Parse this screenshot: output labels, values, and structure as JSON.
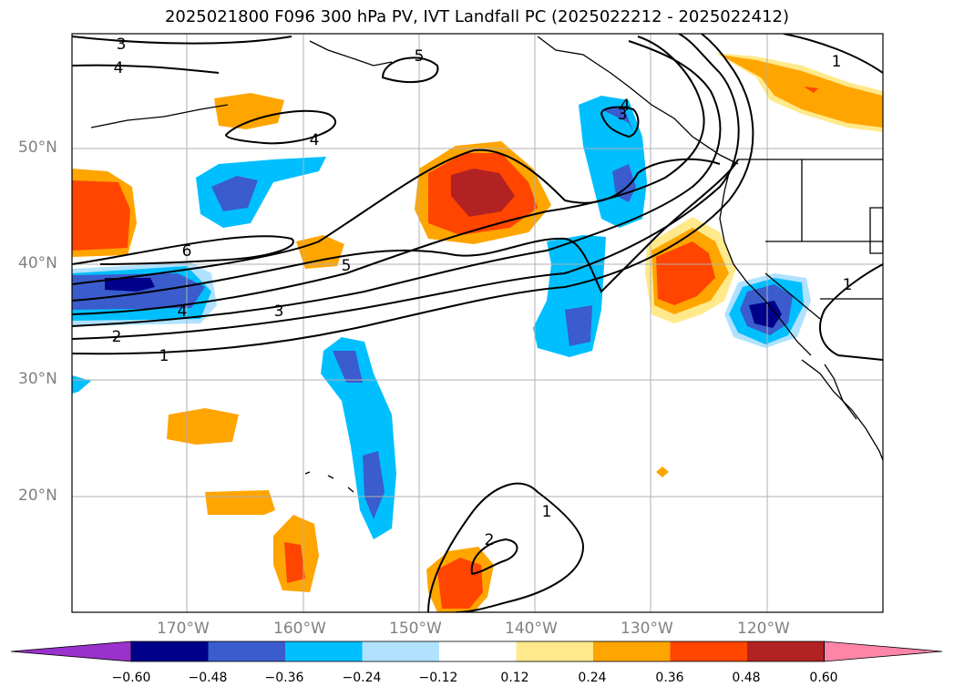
{
  "title": "2025021800 F096 300 hPa PV, IVT Landfall PC (2025022212 - 2025022412)",
  "lat_labels": [
    "50°N",
    "40°N",
    "30°N",
    "20°N"
  ],
  "lon_labels": [
    "170°W",
    "160°W",
    "150°W",
    "140°W",
    "130°W",
    "120°W"
  ],
  "contour_labels": [
    "3",
    "4",
    "5",
    "4",
    "4",
    "3",
    "5",
    "6",
    "5",
    "4",
    "3",
    "2",
    "1",
    "1",
    "1",
    "2",
    "1"
  ],
  "colorbar": {
    "colors": [
      "#9932cc",
      "#00008b",
      "#3a5ccc",
      "#00bfff",
      "#b0e2ff",
      "#ffffff",
      "#ffe98a",
      "#ffa500",
      "#ff4500",
      "#b22222",
      "#ff85a8"
    ],
    "ticks": [
      "−0.60",
      "−0.48",
      "−0.36",
      "−0.24",
      "−0.12",
      "0.12",
      "0.24",
      "0.36",
      "0.48",
      "0.60"
    ]
  }
}
